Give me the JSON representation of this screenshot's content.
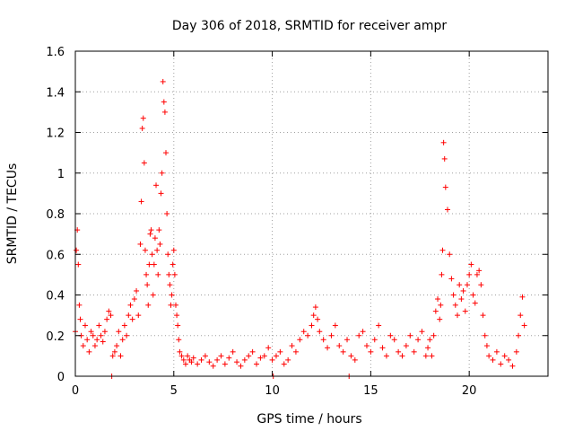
{
  "chart_data": {
    "type": "scatter",
    "title": "Day 306 of 2018, SRMTID for receiver ampr",
    "xlabel": "GPS time / hours",
    "ylabel": "SRMTID / TECUs",
    "xlim": [
      0,
      24
    ],
    "ylim": [
      0,
      1.6
    ],
    "xticks": [
      0,
      5,
      10,
      15,
      20
    ],
    "xtick_labels": [
      "0",
      "5",
      "10",
      "15",
      "20"
    ],
    "yticks": [
      0,
      0.2,
      0.4,
      0.6,
      0.8,
      1.0,
      1.2,
      1.4,
      1.6
    ],
    "ytick_labels": [
      "0",
      "0.2",
      "0.4",
      "0.6",
      "0.8",
      "1",
      "1.2",
      "1.4",
      "1.6"
    ],
    "grid": true,
    "marker": "+",
    "marker_color": "#ff0000",
    "series": [
      {
        "name": "SRMTID",
        "x": [
          0.0,
          0.05,
          0.1,
          0.15,
          0.2,
          0.25,
          0.3,
          0.4,
          0.5,
          0.6,
          0.7,
          0.8,
          0.9,
          1.0,
          1.1,
          1.2,
          1.3,
          1.4,
          1.5,
          1.6,
          1.7,
          1.8,
          1.9,
          2.0,
          2.1,
          2.2,
          2.3,
          2.4,
          2.5,
          2.6,
          2.7,
          2.8,
          2.9,
          3.0,
          3.1,
          3.2,
          3.3,
          3.35,
          3.4,
          3.45,
          3.5,
          3.55,
          3.6,
          3.65,
          3.7,
          3.75,
          3.8,
          3.85,
          3.9,
          3.95,
          4.0,
          4.05,
          4.1,
          4.15,
          4.2,
          4.25,
          4.3,
          4.35,
          4.4,
          4.45,
          4.5,
          4.55,
          4.6,
          4.65,
          4.7,
          4.75,
          4.8,
          4.85,
          4.9,
          4.95,
          5.0,
          5.05,
          5.1,
          5.15,
          5.2,
          5.25,
          5.3,
          5.4,
          5.5,
          5.6,
          5.7,
          5.8,
          5.9,
          6.0,
          6.2,
          6.4,
          6.6,
          6.8,
          7.0,
          7.2,
          7.4,
          7.6,
          7.8,
          8.0,
          8.2,
          8.4,
          8.6,
          8.8,
          9.0,
          9.2,
          9.4,
          9.6,
          9.8,
          10.0,
          10.2,
          10.4,
          10.6,
          10.8,
          11.0,
          11.2,
          11.4,
          11.6,
          11.8,
          12.0,
          12.1,
          12.2,
          12.3,
          12.4,
          12.6,
          12.8,
          13.0,
          13.2,
          13.4,
          13.6,
          13.8,
          14.0,
          14.2,
          14.4,
          14.6,
          14.8,
          15.0,
          15.2,
          15.4,
          15.6,
          15.8,
          16.0,
          16.2,
          16.4,
          16.6,
          16.8,
          17.0,
          17.2,
          17.4,
          17.6,
          17.8,
          17.9,
          18.0,
          18.1,
          18.2,
          18.3,
          18.4,
          18.5,
          18.55,
          18.6,
          18.65,
          18.7,
          18.75,
          18.8,
          18.9,
          19.0,
          19.1,
          19.2,
          19.3,
          19.4,
          19.5,
          19.6,
          19.7,
          19.8,
          19.9,
          20.0,
          20.1,
          20.2,
          20.3,
          20.4,
          20.5,
          20.6,
          20.7,
          20.8,
          20.9,
          21.0,
          21.2,
          21.4,
          21.6,
          21.8,
          22.0,
          22.2,
          22.4,
          22.5,
          22.6,
          22.7,
          22.8,
          1.85,
          13.9,
          10.05
        ],
        "y": [
          0.22,
          0.62,
          0.72,
          0.55,
          0.35,
          0.28,
          0.2,
          0.15,
          0.25,
          0.18,
          0.12,
          0.22,
          0.2,
          0.15,
          0.18,
          0.25,
          0.2,
          0.17,
          0.22,
          0.28,
          0.32,
          0.3,
          0.1,
          0.12,
          0.15,
          0.22,
          0.1,
          0.18,
          0.25,
          0.2,
          0.3,
          0.35,
          0.28,
          0.38,
          0.42,
          0.3,
          0.65,
          0.86,
          1.22,
          1.27,
          1.05,
          0.62,
          0.5,
          0.45,
          0.35,
          0.55,
          0.7,
          0.72,
          0.6,
          0.4,
          0.55,
          0.68,
          0.94,
          0.62,
          0.5,
          0.72,
          0.65,
          0.9,
          1.0,
          1.45,
          1.35,
          1.3,
          1.1,
          0.8,
          0.6,
          0.5,
          0.45,
          0.35,
          0.4,
          0.55,
          0.62,
          0.5,
          0.35,
          0.3,
          0.25,
          0.18,
          0.12,
          0.1,
          0.08,
          0.06,
          0.1,
          0.08,
          0.07,
          0.09,
          0.06,
          0.08,
          0.1,
          0.07,
          0.05,
          0.08,
          0.1,
          0.06,
          0.09,
          0.12,
          0.07,
          0.05,
          0.08,
          0.1,
          0.12,
          0.06,
          0.09,
          0.1,
          0.14,
          0.08,
          0.1,
          0.12,
          0.06,
          0.08,
          0.15,
          0.12,
          0.18,
          0.22,
          0.2,
          0.25,
          0.3,
          0.34,
          0.28,
          0.22,
          0.18,
          0.14,
          0.2,
          0.25,
          0.15,
          0.12,
          0.18,
          0.1,
          0.08,
          0.2,
          0.22,
          0.15,
          0.12,
          0.18,
          0.25,
          0.14,
          0.1,
          0.2,
          0.18,
          0.12,
          0.1,
          0.15,
          0.2,
          0.12,
          0.18,
          0.22,
          0.1,
          0.14,
          0.18,
          0.1,
          0.2,
          0.32,
          0.38,
          0.28,
          0.35,
          0.5,
          0.62,
          1.15,
          1.07,
          0.93,
          0.82,
          0.6,
          0.48,
          0.4,
          0.35,
          0.3,
          0.45,
          0.38,
          0.42,
          0.32,
          0.45,
          0.5,
          0.55,
          0.4,
          0.36,
          0.5,
          0.52,
          0.45,
          0.3,
          0.2,
          0.15,
          0.1,
          0.08,
          0.12,
          0.06,
          0.1,
          0.08,
          0.05,
          0.12,
          0.2,
          0.3,
          0.39,
          0.25,
          0.0,
          0.0,
          0.0
        ]
      }
    ]
  }
}
